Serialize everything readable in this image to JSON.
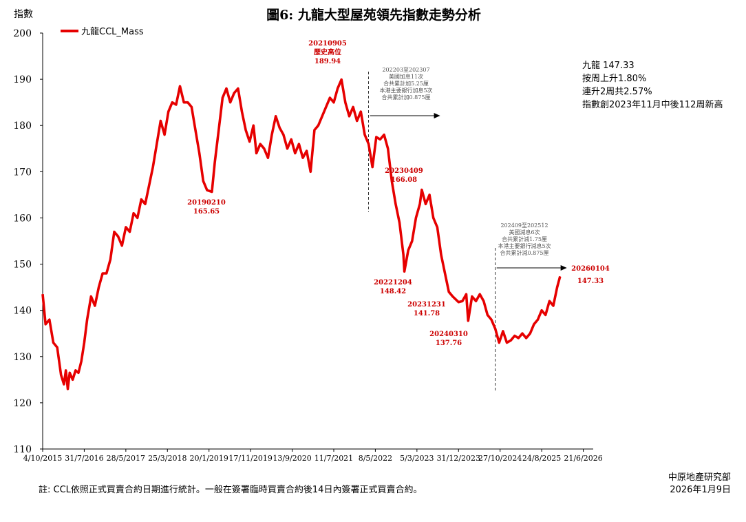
{
  "chart_data": {
    "type": "line",
    "title": "圖6: 九龍大型屋苑領先指數走勢分析",
    "ylabel": "指數",
    "ylim": [
      110,
      200
    ],
    "y_ticks": [
      110,
      120,
      130,
      140,
      150,
      160,
      170,
      180,
      190,
      200
    ],
    "x_tick_labels": [
      "4/10/2015",
      "31/7/2016",
      "28/5/2017",
      "25/3/2018",
      "20/1/2019",
      "17/11/2019",
      "13/9/2020",
      "11/7/2021",
      "8/5/2022",
      "5/3/2023",
      "31/12/2023",
      "27/10/2024",
      "24/8/2025",
      "21/6/2026"
    ],
    "xlim": [
      "2015-10-04",
      "2026-09-01"
    ],
    "legend": {
      "position": "top-left",
      "entries": [
        "九龍CCL_Mass"
      ]
    },
    "grid": false,
    "series": [
      {
        "name": "九龍CCL_Mass",
        "color": "#e60000",
        "points": [
          [
            "2015-10-04",
            143.5
          ],
          [
            "2015-10-25",
            137
          ],
          [
            "2015-11-22",
            138
          ],
          [
            "2015-12-20",
            133
          ],
          [
            "2016-01-17",
            132
          ],
          [
            "2016-02-14",
            126
          ],
          [
            "2016-03-06",
            124
          ],
          [
            "2016-03-20",
            127
          ],
          [
            "2016-04-03",
            123
          ],
          [
            "2016-04-17",
            126.5
          ],
          [
            "2016-05-08",
            125
          ],
          [
            "2016-05-29",
            127
          ],
          [
            "2016-06-19",
            126.5
          ],
          [
            "2016-07-10",
            129
          ],
          [
            "2016-07-31",
            133
          ],
          [
            "2016-08-21",
            138
          ],
          [
            "2016-09-18",
            143
          ],
          [
            "2016-10-16",
            141
          ],
          [
            "2016-11-13",
            145
          ],
          [
            "2016-12-11",
            148
          ],
          [
            "2017-01-08",
            148
          ],
          [
            "2017-02-05",
            151
          ],
          [
            "2017-03-05",
            157
          ],
          [
            "2017-04-02",
            156
          ],
          [
            "2017-04-30",
            154
          ],
          [
            "2017-05-28",
            158
          ],
          [
            "2017-06-25",
            157
          ],
          [
            "2017-07-23",
            161
          ],
          [
            "2017-08-20",
            160
          ],
          [
            "2017-09-17",
            164
          ],
          [
            "2017-10-15",
            163
          ],
          [
            "2017-11-12",
            167
          ],
          [
            "2017-12-10",
            171
          ],
          [
            "2018-01-07",
            176
          ],
          [
            "2018-02-04",
            181
          ],
          [
            "2018-03-04",
            178
          ],
          [
            "2018-04-01",
            183
          ],
          [
            "2018-04-29",
            185
          ],
          [
            "2018-05-27",
            184.5
          ],
          [
            "2018-06-24",
            188.5
          ],
          [
            "2018-07-22",
            185
          ],
          [
            "2018-08-19",
            185
          ],
          [
            "2018-09-16",
            184
          ],
          [
            "2018-10-14",
            179
          ],
          [
            "2018-11-11",
            174
          ],
          [
            "2018-12-09",
            168
          ],
          [
            "2019-01-06",
            166
          ],
          [
            "2019-02-10",
            165.65
          ],
          [
            "2019-03-03",
            172
          ],
          [
            "2019-03-31",
            179
          ],
          [
            "2019-04-28",
            186
          ],
          [
            "2019-05-26",
            188
          ],
          [
            "2019-06-23",
            185
          ],
          [
            "2019-07-21",
            187
          ],
          [
            "2019-08-18",
            188
          ],
          [
            "2019-09-15",
            183
          ],
          [
            "2019-10-13",
            179
          ],
          [
            "2019-11-10",
            176.5
          ],
          [
            "2019-12-08",
            180
          ],
          [
            "2019-12-29",
            174
          ],
          [
            "2020-01-26",
            176
          ],
          [
            "2020-02-23",
            175
          ],
          [
            "2020-03-22",
            173
          ],
          [
            "2020-04-19",
            178
          ],
          [
            "2020-05-17",
            182
          ],
          [
            "2020-06-14",
            179.5
          ],
          [
            "2020-07-12",
            178
          ],
          [
            "2020-08-09",
            175
          ],
          [
            "2020-09-06",
            177
          ],
          [
            "2020-10-04",
            174
          ],
          [
            "2020-11-01",
            176
          ],
          [
            "2020-11-29",
            173
          ],
          [
            "2020-12-27",
            174.5
          ],
          [
            "2021-01-24",
            170
          ],
          [
            "2021-02-21",
            179
          ],
          [
            "2021-03-21",
            180
          ],
          [
            "2021-04-18",
            182
          ],
          [
            "2021-05-16",
            184
          ],
          [
            "2021-06-13",
            186
          ],
          [
            "2021-07-11",
            185
          ],
          [
            "2021-08-08",
            188
          ],
          [
            "2021-09-05",
            189.94
          ],
          [
            "2021-10-03",
            185
          ],
          [
            "2021-10-31",
            182
          ],
          [
            "2021-11-28",
            184
          ],
          [
            "2021-12-26",
            181
          ],
          [
            "2022-01-23",
            183
          ],
          [
            "2022-02-20",
            178
          ],
          [
            "2022-03-20",
            176
          ],
          [
            "2022-04-17",
            171
          ],
          [
            "2022-05-15",
            177.5
          ],
          [
            "2022-06-12",
            177
          ],
          [
            "2022-07-10",
            178
          ],
          [
            "2022-08-07",
            175
          ],
          [
            "2022-09-04",
            168
          ],
          [
            "2022-10-02",
            163
          ],
          [
            "2022-10-30",
            159
          ],
          [
            "2022-11-27",
            152
          ],
          [
            "2022-12-04",
            148.42
          ],
          [
            "2023-01-01",
            153
          ],
          [
            "2023-01-29",
            155
          ],
          [
            "2023-02-26",
            160
          ],
          [
            "2023-03-26",
            163
          ],
          [
            "2023-04-09",
            166.08
          ],
          [
            "2023-05-07",
            163
          ],
          [
            "2023-06-04",
            165
          ],
          [
            "2023-07-02",
            160
          ],
          [
            "2023-07-30",
            158
          ],
          [
            "2023-08-27",
            152
          ],
          [
            "2023-09-24",
            148
          ],
          [
            "2023-10-22",
            144
          ],
          [
            "2023-11-19",
            143
          ],
          [
            "2023-12-31",
            141.78
          ],
          [
            "2024-01-28",
            142
          ],
          [
            "2024-02-25",
            143.5
          ],
          [
            "2024-03-10",
            137.76
          ],
          [
            "2024-04-07",
            143
          ],
          [
            "2024-05-05",
            142
          ],
          [
            "2024-06-02",
            143.5
          ],
          [
            "2024-06-30",
            142
          ],
          [
            "2024-07-28",
            139
          ],
          [
            "2024-08-25",
            138
          ],
          [
            "2024-09-22",
            136
          ],
          [
            "2024-10-20",
            133
          ],
          [
            "2024-11-17",
            135.5
          ],
          [
            "2024-12-15",
            133
          ],
          [
            "2025-01-12",
            133.5
          ],
          [
            "2025-02-09",
            134.5
          ],
          [
            "2025-03-09",
            134
          ],
          [
            "2025-04-06",
            135
          ],
          [
            "2025-05-04",
            134
          ],
          [
            "2025-06-01",
            135
          ],
          [
            "2025-06-29",
            137
          ],
          [
            "2025-07-27",
            138
          ],
          [
            "2025-08-24",
            140
          ],
          [
            "2025-09-21",
            139
          ],
          [
            "2025-10-19",
            142
          ],
          [
            "2025-11-16",
            141
          ],
          [
            "2025-12-14",
            145
          ],
          [
            "2026-01-04",
            147.33
          ]
        ]
      }
    ],
    "annotations": [
      {
        "date": "2019-02-10",
        "value": 165.65,
        "lines": [
          "20190210",
          "165.65"
        ]
      },
      {
        "date": "2021-09-05",
        "value": 189.94,
        "lines": [
          "20210905",
          "歷史高位",
          "189.94"
        ]
      },
      {
        "date": "2022-12-04",
        "value": 148.42,
        "lines": [
          "20221204",
          "148.42"
        ]
      },
      {
        "date": "2023-04-09",
        "value": 166.08,
        "lines": [
          "20230409",
          "166.08"
        ]
      },
      {
        "date": "2023-12-31",
        "value": 141.78,
        "lines": [
          "20231231",
          "141.78"
        ]
      },
      {
        "date": "2024-03-10",
        "value": 137.76,
        "lines": [
          "20240310",
          "137.76"
        ]
      },
      {
        "date": "2026-01-04",
        "value": 147.33,
        "lines": [
          "20260104",
          "147.33"
        ]
      }
    ],
    "periods": [
      {
        "start_date": "2022-03-20",
        "lines": [
          "202203至202307",
          "美國加息11次",
          "合共累計加5.25厘",
          "本港主要銀行加息5次",
          "合共累計加0.875厘"
        ]
      },
      {
        "start_date": "2024-09-22",
        "lines": [
          "202409至202512",
          "美國減息6次",
          "合共累計減1.75厘",
          "本港主要銀行減息5次",
          "合共累計減0.875厘"
        ]
      }
    ]
  },
  "side_panel": [
    "九龍 147.33",
    "按周上升1.80%",
    "連升2周共2.57%",
    "指數創2023年11月中後112周新高"
  ],
  "footnote": "註: CCL依照正式買賣合約日期進行統計。一般在簽署臨時買賣合約後14日內簽署正式買賣合約。",
  "source": {
    "org": "中原地產研究部",
    "date": "2026年1月9日"
  }
}
